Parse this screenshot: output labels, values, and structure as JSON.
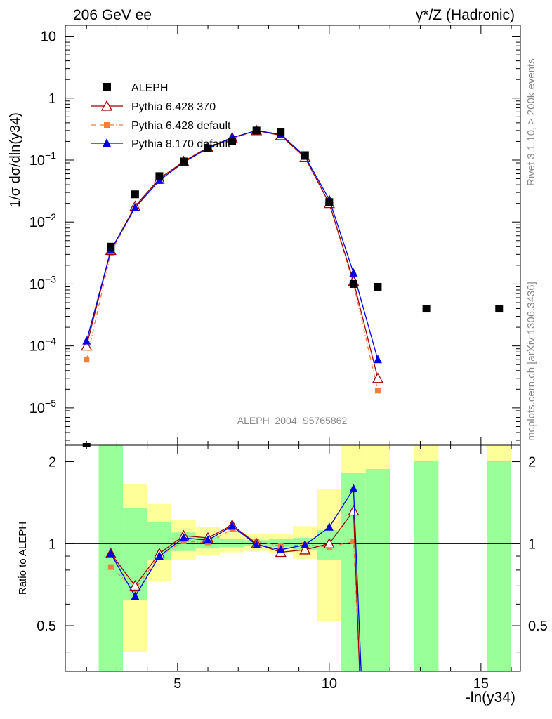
{
  "header": {
    "left": "206 GeV ee",
    "right": "γ*/Z (Hadronic)"
  },
  "side_text": {
    "rivet": "Rivet 3.1.10, ≥ 200k events",
    "mcplots": "mcplots.cern.ch [arXiv:1306.3436]"
  },
  "watermark": "ALEPH_2004_S5765862",
  "colors": {
    "data": "#000000",
    "pythia6_370": "#a00000",
    "pythia6_default": "#f07f3c",
    "pythia8": "#0000e0",
    "band_yellow": "#ffff99",
    "band_green": "#99ff99"
  },
  "chart_data": [
    {
      "type": "scatter",
      "panel": "main",
      "ylabel": "1/σ  dσ/dln(y34)",
      "yscale": "log",
      "ylim": [
        2.5e-06,
        15
      ],
      "xlim": [
        1.3,
        16.3
      ],
      "y_ticks": [
        "10^-5",
        "10^-4",
        "10^-3",
        "10^-2",
        "10^-1",
        "1",
        "10"
      ],
      "legend_position": "top-left",
      "series": [
        {
          "name": "ALEPH",
          "x": [
            2.0,
            2.8,
            3.6,
            4.4,
            5.2,
            6.0,
            6.8,
            7.6,
            8.4,
            9.2,
            10.0,
            10.8,
            11.6,
            13.2,
            15.6
          ],
          "y": [
            2.4e-06,
            0.004,
            0.028,
            0.055,
            0.095,
            0.155,
            0.2,
            0.3,
            0.28,
            0.12,
            0.021,
            0.001,
            0.0009,
            0.0004,
            0.0004
          ]
        },
        {
          "name": "Pythia 6.428 370",
          "x": [
            2.0,
            2.8,
            3.6,
            4.4,
            5.2,
            6.0,
            6.8,
            7.6,
            8.4,
            9.2,
            10.0,
            10.8,
            11.6
          ],
          "y": [
            0.0001,
            0.0035,
            0.018,
            0.05,
            0.095,
            0.16,
            0.23,
            0.3,
            0.25,
            0.11,
            0.02,
            0.0011,
            3e-05
          ]
        },
        {
          "name": "Pythia 6.428 default",
          "x": [
            2.0,
            2.8,
            3.6,
            4.4,
            5.2,
            6.0,
            6.8,
            7.6,
            8.4,
            9.2,
            10.0,
            10.8,
            11.6
          ],
          "y": [
            6e-05,
            0.0032,
            0.017,
            0.048,
            0.092,
            0.155,
            0.22,
            0.3,
            0.26,
            0.115,
            0.02,
            0.001,
            1.9e-05
          ]
        },
        {
          "name": "Pythia 8.170 default",
          "x": [
            2.0,
            2.8,
            3.6,
            4.4,
            5.2,
            6.0,
            6.8,
            7.6,
            8.4,
            9.2,
            10.0,
            10.8,
            11.6
          ],
          "y": [
            0.00012,
            0.0035,
            0.017,
            0.047,
            0.092,
            0.155,
            0.23,
            0.3,
            0.26,
            0.115,
            0.023,
            0.0015,
            6e-05
          ]
        }
      ]
    },
    {
      "type": "line",
      "panel": "ratio",
      "ylabel": "Ratio to ALEPH",
      "xlabel": "-ln(y34)",
      "ylim": [
        0.34,
        2.3
      ],
      "xlim": [
        1.3,
        16.3
      ],
      "x_ticks": [
        "5",
        "10",
        "15"
      ],
      "y_ticks": [
        "0.5",
        "1",
        "2"
      ],
      "bands": [
        {
          "x0": 2.4,
          "x1": 3.2,
          "y_lo": 0.34,
          "y_hi": 2.3,
          "stat_lo": 0.34,
          "stat_hi": 2.3
        },
        {
          "x0": 3.2,
          "x1": 4.0,
          "y_lo": 0.4,
          "y_hi": 1.65,
          "stat_lo": 0.62,
          "stat_hi": 1.35
        },
        {
          "x0": 4.0,
          "x1": 4.8,
          "y_lo": 0.73,
          "y_hi": 1.4,
          "stat_lo": 0.87,
          "stat_hi": 1.2
        },
        {
          "x0": 4.8,
          "x1": 5.6,
          "y_lo": 0.87,
          "y_hi": 1.22,
          "stat_lo": 0.94,
          "stat_hi": 1.1
        },
        {
          "x0": 5.6,
          "x1": 6.4,
          "y_lo": 0.91,
          "y_hi": 1.15,
          "stat_lo": 0.96,
          "stat_hi": 1.06
        },
        {
          "x0": 6.4,
          "x1": 7.2,
          "y_lo": 0.93,
          "y_hi": 1.1,
          "stat_lo": 0.97,
          "stat_hi": 1.04
        },
        {
          "x0": 7.2,
          "x1": 8.0,
          "y_lo": 0.94,
          "y_hi": 1.09,
          "stat_lo": 0.98,
          "stat_hi": 1.03
        },
        {
          "x0": 8.0,
          "x1": 8.8,
          "y_lo": 0.92,
          "y_hi": 1.09,
          "stat_lo": 0.97,
          "stat_hi": 1.04
        },
        {
          "x0": 8.8,
          "x1": 9.6,
          "y_lo": 0.88,
          "y_hi": 1.16,
          "stat_lo": 0.95,
          "stat_hi": 1.05
        },
        {
          "x0": 9.6,
          "x1": 10.4,
          "y_lo": 0.52,
          "y_hi": 1.58,
          "stat_lo": 0.87,
          "stat_hi": 1.12
        },
        {
          "x0": 10.4,
          "x1": 11.2,
          "y_lo": 0.34,
          "y_hi": 2.3,
          "stat_lo": 0.34,
          "stat_hi": 1.82
        },
        {
          "x0": 11.2,
          "x1": 12.0,
          "y_lo": 0.34,
          "y_hi": 2.3,
          "stat_lo": 0.34,
          "stat_hi": 1.88
        },
        {
          "x0": 12.8,
          "x1": 13.6,
          "y_lo": 0.34,
          "y_hi": 2.3,
          "stat_lo": 0.34,
          "stat_hi": 2.02
        },
        {
          "x0": 15.2,
          "x1": 16.0,
          "y_lo": 0.34,
          "y_hi": 2.3,
          "stat_lo": 0.34,
          "stat_hi": 2.02
        }
      ],
      "series": [
        {
          "name": "Pythia 6.428 370",
          "x": [
            2.8,
            3.6,
            4.4,
            5.2,
            6.0,
            6.8,
            7.6,
            8.4,
            9.2,
            10.0,
            10.8,
            11.0
          ],
          "y": [
            0.92,
            0.7,
            0.92,
            1.07,
            1.05,
            1.17,
            1.0,
            0.93,
            0.95,
            1.0,
            1.32,
            0.34
          ]
        },
        {
          "name": "Pythia 6.428 default",
          "x": [
            2.8,
            3.6,
            4.4,
            5.2,
            6.0,
            6.8,
            7.6,
            8.4,
            9.2,
            10.0,
            10.8,
            11.0
          ],
          "y": [
            0.82,
            0.68,
            0.9,
            1.02,
            1.01,
            1.13,
            1.02,
            0.98,
            0.99,
            0.97,
            1.02,
            0.34
          ]
        },
        {
          "name": "Pythia 8.170 default",
          "x": [
            2.8,
            3.6,
            4.4,
            5.2,
            6.0,
            6.8,
            7.6,
            8.4,
            9.2,
            10.0,
            10.8,
            11.05
          ],
          "y": [
            0.92,
            0.64,
            0.9,
            1.05,
            1.03,
            1.16,
            0.99,
            0.95,
            0.99,
            1.15,
            1.59,
            0.34
          ]
        }
      ]
    }
  ]
}
